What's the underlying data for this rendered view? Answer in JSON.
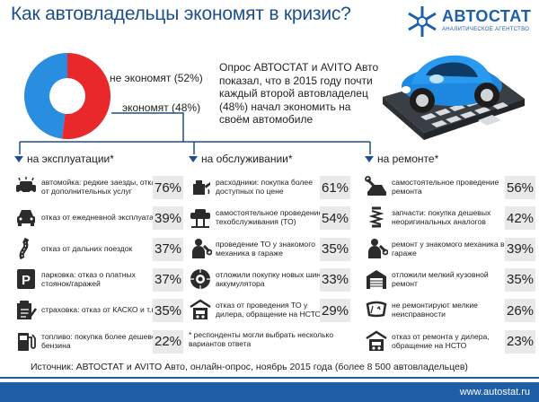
{
  "header": {
    "title": "Как автовладельцы экономят в кризис?"
  },
  "logo": {
    "name": "АВТОСТАТ",
    "subtitle": "АНАЛИТИЧЕСКОЕ АГЕНТСТВО",
    "colors": {
      "primary": "#1d5fa8"
    }
  },
  "chart_data": {
    "type": "pie",
    "slices": [
      {
        "label": "не экономят (52%)",
        "value": 52,
        "color": "#e8282b"
      },
      {
        "label": "экономят (48%)",
        "value": 48,
        "color": "#2a8ee0"
      }
    ]
  },
  "survey_text": "Опрос АВТОСТАТ и AVITO Авто показал, что в 2015 году почти каждый второй автовладелец (48%) начал экономить на своём автомобиле",
  "columns": [
    {
      "heading": "на эксплуатации*",
      "rows": [
        {
          "text": "автомойка: редкие заезды, отказ от дополнительных услуг",
          "pct": "76%",
          "icon": "car-wash-icon"
        },
        {
          "text": "отказ от ежедневной эксплуатации",
          "pct": "39%",
          "icon": "car-front-icon"
        },
        {
          "text": "отказ от дальних поездок",
          "pct": "37%",
          "icon": "road-icon"
        },
        {
          "text": "парковка: отказ о платных стоянок/гаражей",
          "pct": "37%",
          "icon": "parking-icon"
        },
        {
          "text": "страховка: отказ от КАСКО и т.п.",
          "pct": "35%",
          "icon": "insurance-icon"
        },
        {
          "text": "топливо: покупка более дешевого бензина",
          "pct": "22%",
          "icon": "fuel-icon"
        }
      ]
    },
    {
      "heading": "на обслуживании*",
      "rows": [
        {
          "text": "расходники: покупка более доступных по цене",
          "pct": "61%",
          "icon": "oil-can-icon"
        },
        {
          "text": "самостоятельное проведение техобслуживания (ТО)",
          "pct": "54%",
          "icon": "car-lift-icon"
        },
        {
          "text": "проведение ТО у знакомого механика в гараже",
          "pct": "35%",
          "icon": "mechanic-icon"
        },
        {
          "text": "отложили покупку новых шин/аккумулятора",
          "pct": "33%",
          "icon": "tire-icon"
        },
        {
          "text": "отказ от проведения ТО у дилера, обращение на НСТО",
          "pct": "29%",
          "icon": "service-station-icon"
        }
      ]
    },
    {
      "heading": "на ремонте*",
      "rows": [
        {
          "text": "самостоятельное проведение ремонта",
          "pct": "56%",
          "icon": "repair-icon"
        },
        {
          "text": "запчасти: покупка дешевых неоригинальных аналогов",
          "pct": "42%",
          "icon": "spring-icon"
        },
        {
          "text": "ремонт у знакомого механика в гараже",
          "pct": "39%",
          "icon": "mechanic-icon"
        },
        {
          "text": "отложили мелкий кузовной ремонт",
          "pct": "35%",
          "icon": "garage-icon"
        },
        {
          "text": "не ремонтируют мелкие неисправности",
          "pct": "26%",
          "icon": "windshield-icon"
        },
        {
          "text": "отказ от ремонта у дилера, обращение на НСТО",
          "pct": "23%",
          "icon": "service-station-icon"
        }
      ]
    }
  ],
  "note": "* респонденты могли выбрать несколько вариантов ответа",
  "source": "Источник: АВТОСТАТ и AVITO Авто, онлайн-опрос, ноябрь 2015 года (более 8 500 автовладельцев)",
  "footer_url": "www.autostat.ru"
}
